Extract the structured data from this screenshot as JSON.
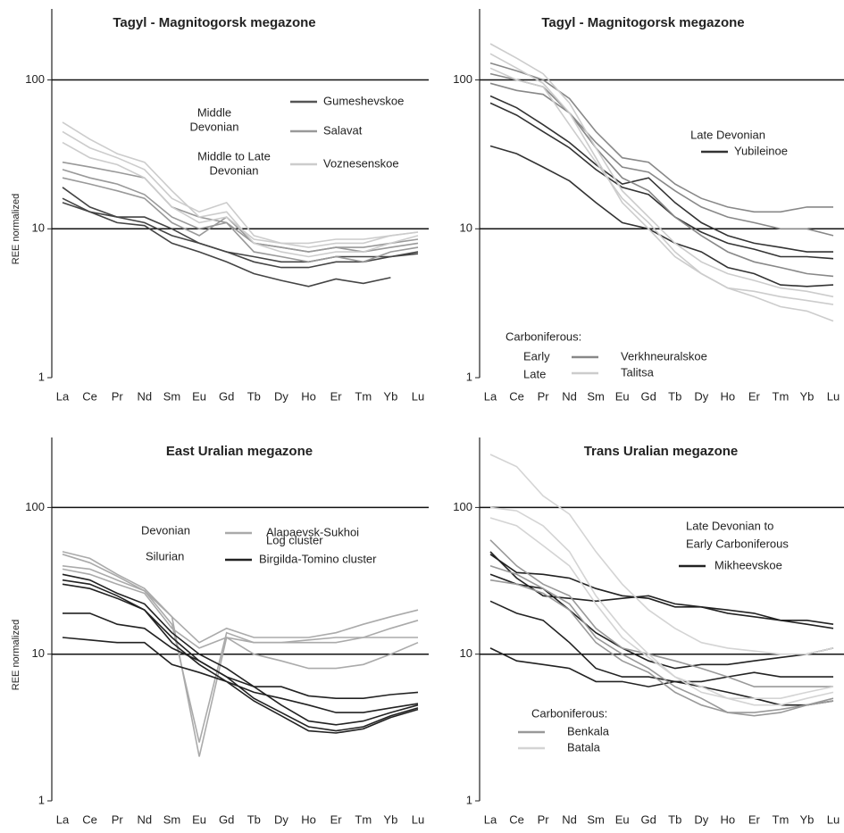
{
  "chart_data": [
    {
      "type": "line",
      "title": "Tagyl - Magnitogorsk megazone",
      "ylabel": "REE normalized",
      "log_y": true,
      "grid": true,
      "categories": [
        "La",
        "Ce",
        "Pr",
        "Nd",
        "Sm",
        "Eu",
        "Gd",
        "Tb",
        "Dy",
        "Ho",
        "Er",
        "Tm",
        "Yb",
        "Lu"
      ],
      "ylim": [
        1,
        300
      ],
      "yticks": [
        1,
        10,
        100
      ],
      "legend": [
        {
          "label": "Gumeshevskoe",
          "color": "#555555"
        },
        {
          "label": "Salavat",
          "color": "#999999"
        },
        {
          "label": "Voznesenskoe",
          "color": "#cccccc"
        }
      ],
      "annotations": [
        {
          "text": "Middle"
        },
        {
          "text": "Devonian"
        },
        {
          "text": "Middle to Late"
        },
        {
          "text": "Devonian"
        }
      ],
      "series": [
        {
          "color": "#444444",
          "values": [
            19,
            14,
            12,
            12,
            10,
            8,
            7,
            6,
            5.5,
            5.5,
            6,
            6,
            6.5,
            7
          ]
        },
        {
          "color": "#444444",
          "values": [
            15,
            13,
            11,
            10.5,
            8,
            7,
            6,
            5,
            4.5,
            4.1,
            4.6,
            4.3,
            4.7,
            null
          ]
        },
        {
          "color": "#444444",
          "values": [
            16,
            13,
            12,
            11,
            9,
            8,
            7,
            6.5,
            6,
            6,
            6.5,
            6.5,
            6.5,
            6.8
          ]
        },
        {
          "color": "#999999",
          "values": [
            28,
            26,
            24,
            22,
            14,
            12,
            11,
            8,
            7.5,
            7,
            7.5,
            7,
            7.5,
            8
          ]
        },
        {
          "color": "#999999",
          "values": [
            25,
            22,
            20,
            17,
            12,
            10,
            11,
            7,
            6.5,
            6,
            6.5,
            6,
            7,
            7.5
          ]
        },
        {
          "color": "#999999",
          "values": [
            22,
            20,
            18,
            16,
            11,
            9,
            12,
            8,
            7.5,
            7,
            7.5,
            7.5,
            8,
            8.5
          ]
        },
        {
          "color": "#cccccc",
          "values": [
            52,
            40,
            32,
            28,
            18,
            12,
            13,
            8,
            7,
            6.5,
            7,
            7,
            8,
            9
          ]
        },
        {
          "color": "#cccccc",
          "values": [
            45,
            35,
            30,
            25,
            16,
            13,
            15,
            9,
            8,
            7.5,
            8,
            8,
            9,
            9.5
          ]
        },
        {
          "color": "#cccccc",
          "values": [
            38,
            30,
            27,
            22,
            14,
            11,
            12,
            8.5,
            8,
            8,
            8.5,
            8.5,
            9,
            9.5
          ]
        }
      ]
    },
    {
      "type": "line",
      "title": "Tagyl - Magnitogorsk megazone",
      "log_y": true,
      "grid": true,
      "categories": [
        "La",
        "Ce",
        "Pr",
        "Nd",
        "Sm",
        "Eu",
        "Gd",
        "Tb",
        "Dy",
        "Ho",
        "Er",
        "Tm",
        "Yb",
        "Lu"
      ],
      "ylim": [
        1,
        300
      ],
      "yticks": [
        1,
        10,
        100
      ],
      "legend": [
        {
          "label": "Yubileinoe",
          "color": "#333333"
        },
        {
          "label": "Verkhneuralskoe",
          "color": "#888888"
        },
        {
          "label": "Talitsa",
          "color": "#cccccc"
        }
      ],
      "annotations": [
        {
          "text": "Late Devonian"
        },
        {
          "text": "Carboniferous:"
        },
        {
          "text": "Early"
        },
        {
          "text": "Late"
        }
      ],
      "series": [
        {
          "color": "#333333",
          "values": [
            36,
            32,
            26,
            21,
            15,
            11,
            10,
            8,
            7,
            5.5,
            5,
            4.2,
            4.1,
            4.2
          ]
        },
        {
          "color": "#333333",
          "values": [
            78,
            65,
            50,
            38,
            27,
            20,
            22,
            15,
            11,
            9,
            8,
            7.5,
            7,
            7
          ]
        },
        {
          "color": "#333333",
          "values": [
            70,
            58,
            45,
            35,
            25,
            19,
            17,
            12,
            9.5,
            8,
            7.3,
            6.5,
            6.5,
            6.3
          ]
        },
        {
          "color": "#888888",
          "values": [
            130,
            115,
            100,
            75,
            45,
            30,
            28,
            20,
            16,
            14,
            13,
            13,
            14,
            14
          ]
        },
        {
          "color": "#888888",
          "values": [
            95,
            85,
            80,
            60,
            38,
            26,
            24,
            18,
            14,
            12,
            11,
            10,
            10,
            9
          ]
        },
        {
          "color": "#888888",
          "values": [
            110,
            100,
            90,
            60,
            35,
            22,
            18,
            12,
            9,
            7,
            6,
            5.5,
            5,
            4.8
          ]
        },
        {
          "color": "#cccccc",
          "values": [
            175,
            140,
            110,
            70,
            35,
            18,
            12,
            8,
            6,
            5,
            4.5,
            4,
            3.8,
            3.5
          ]
        },
        {
          "color": "#cccccc",
          "values": [
            150,
            120,
            95,
            60,
            30,
            15,
            10,
            6.5,
            5,
            4,
            3.5,
            3,
            2.8,
            2.4
          ]
        },
        {
          "color": "#cccccc",
          "values": [
            120,
            100,
            90,
            50,
            28,
            16,
            11,
            7,
            5,
            4,
            3.8,
            3.5,
            3.3,
            3.1
          ]
        }
      ]
    },
    {
      "type": "line",
      "title": "East Uralian megazone",
      "ylabel": "REE normalized",
      "log_y": true,
      "grid": true,
      "categories": [
        "La",
        "Ce",
        "Pr",
        "Nd",
        "Sm",
        "Eu",
        "Gd",
        "Tb",
        "Dy",
        "Ho",
        "Er",
        "Tm",
        "Yb",
        "Lu"
      ],
      "ylim": [
        1,
        300
      ],
      "yticks": [
        1,
        10,
        100
      ],
      "legend": [
        {
          "label": "Alapaevsk-Sukhoi",
          "color": "#aaaaaa"
        },
        {
          "label": "Birgilda-Tomino cluster",
          "color": "#222222"
        }
      ],
      "annotations": [
        {
          "text": "Devonian"
        },
        {
          "text": "Log cluster"
        },
        {
          "text": "Silurian"
        }
      ],
      "series": [
        {
          "color": "#aaaaaa",
          "values": [
            50,
            45,
            35,
            28,
            18,
            2,
            13,
            10,
            9,
            8,
            8,
            8.5,
            10,
            12
          ]
        },
        {
          "color": "#aaaaaa",
          "values": [
            48,
            42,
            34,
            27,
            18,
            12,
            15,
            13,
            13,
            13,
            14,
            16,
            18,
            20
          ]
        },
        {
          "color": "#aaaaaa",
          "values": [
            40,
            38,
            32,
            27,
            16,
            2.5,
            14,
            12,
            12,
            12,
            12,
            13,
            13,
            13
          ]
        },
        {
          "color": "#aaaaaa",
          "values": [
            38,
            35,
            30,
            26,
            15,
            11,
            13,
            12,
            12,
            12.5,
            13,
            13,
            15,
            17
          ]
        },
        {
          "color": "#222222",
          "values": [
            35,
            32,
            26,
            22,
            14,
            10,
            8,
            6,
            4.5,
            3.5,
            3.3,
            3.5,
            4,
            4.5
          ]
        },
        {
          "color": "#222222",
          "values": [
            32,
            30,
            25,
            20,
            13,
            9,
            7,
            5,
            4,
            3.2,
            3,
            3.2,
            3.8,
            4.3
          ]
        },
        {
          "color": "#222222",
          "values": [
            30,
            28,
            24,
            20,
            12,
            8.5,
            6.5,
            4.8,
            3.8,
            3,
            2.9,
            3.1,
            3.7,
            4.2
          ]
        },
        {
          "color": "#222222",
          "values": [
            19,
            19,
            16,
            15,
            11,
            9,
            7,
            6,
            6,
            5.2,
            5,
            5,
            5.3,
            5.5
          ]
        },
        {
          "color": "#222222",
          "values": [
            13,
            12.5,
            12,
            12,
            8.5,
            7.5,
            6.5,
            5.5,
            5,
            4.5,
            4,
            4,
            4.3,
            4.6
          ]
        }
      ]
    },
    {
      "type": "line",
      "title": "Trans Uralian megazone",
      "log_y": true,
      "grid": true,
      "categories": [
        "La",
        "Ce",
        "Pr",
        "Nd",
        "Sm",
        "Eu",
        "Gd",
        "Tb",
        "Dy",
        "Ho",
        "Er",
        "Tm",
        "Yb",
        "Lu"
      ],
      "ylim": [
        1,
        300
      ],
      "yticks": [
        1,
        10,
        100
      ],
      "legend": [
        {
          "label": "Mikheevskoe",
          "color": "#222222"
        },
        {
          "label": "Benkala",
          "color": "#999999"
        },
        {
          "label": "Batala",
          "color": "#d4d4d4"
        }
      ],
      "annotations": [
        {
          "text": "Late Devonian to"
        },
        {
          "text": "Early Carboniferous"
        },
        {
          "text": "Carboniferous:"
        }
      ],
      "series": [
        {
          "color": "#222222",
          "values": [
            48,
            36,
            35,
            33,
            28,
            25,
            24,
            21,
            21,
            20,
            19,
            17,
            17,
            16
          ]
        },
        {
          "color": "#222222",
          "values": [
            50,
            33,
            25,
            24,
            23,
            24,
            25,
            22,
            21,
            19,
            18,
            17,
            16,
            15
          ]
        },
        {
          "color": "#222222",
          "values": [
            35,
            30,
            28,
            20,
            14,
            11,
            9,
            8,
            8.5,
            8.5,
            9,
            9.5,
            10,
            11
          ]
        },
        {
          "color": "#222222",
          "values": [
            23,
            19,
            17,
            12,
            8,
            7,
            7,
            6.5,
            6,
            5.5,
            5,
            4.5,
            4.5,
            4.8
          ]
        },
        {
          "color": "#222222",
          "values": [
            11,
            9,
            8.5,
            8,
            6.5,
            6.5,
            6,
            6.5,
            6.5,
            7,
            7.5,
            7,
            7,
            7
          ]
        },
        {
          "color": "#999999",
          "values": [
            60,
            40,
            30,
            25,
            15,
            11,
            10,
            9,
            8,
            7,
            6,
            6,
            6,
            6
          ]
        },
        {
          "color": "#999999",
          "values": [
            40,
            35,
            28,
            22,
            13,
            10,
            8,
            6,
            5,
            4,
            3.8,
            4,
            4.5,
            5
          ]
        },
        {
          "color": "#999999",
          "values": [
            32,
            30,
            26,
            20,
            12,
            9,
            7.5,
            5.5,
            4.5,
            4,
            4,
            4.2,
            4.5,
            4.8
          ]
        },
        {
          "color": "#d4d4d4",
          "values": [
            230,
            190,
            120,
            90,
            50,
            30,
            20,
            15,
            12,
            11,
            10.5,
            10,
            10,
            11
          ]
        },
        {
          "color": "#d4d4d4",
          "values": [
            100,
            95,
            75,
            50,
            25,
            15,
            10,
            7,
            6,
            5,
            4.5,
            4.5,
            5,
            5.5
          ]
        },
        {
          "color": "#d4d4d4",
          "values": [
            85,
            75,
            55,
            40,
            22,
            13,
            9.5,
            7,
            5.5,
            5,
            5,
            5,
            5.5,
            6
          ]
        }
      ]
    }
  ]
}
